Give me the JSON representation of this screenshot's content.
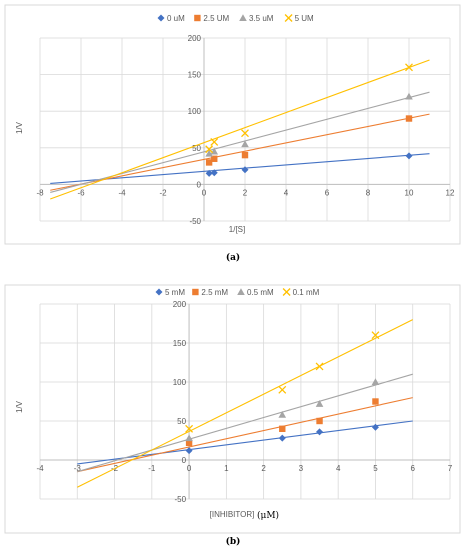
{
  "captions": [
    "(a)",
    "(b)"
  ],
  "chart_data": [
    {
      "type": "scatter",
      "title": "",
      "xlabel": "1/[S]",
      "ylabel": "1/V",
      "xlim": [
        -8,
        12
      ],
      "ylim": [
        -50,
        200
      ],
      "x_ticks": [
        -8,
        -6,
        -4,
        -2,
        0,
        2,
        4,
        6,
        8,
        10,
        12
      ],
      "x_tick_labels": [
        "-8",
        "-6",
        "-4",
        "-2",
        "0",
        "2",
        "4",
        "6",
        "8",
        "10",
        "12"
      ],
      "y_ticks": [
        -50,
        0,
        50,
        100,
        150,
        200
      ],
      "y_tick_labels": [
        "-50",
        "0",
        "50",
        "100",
        "150",
        "200"
      ],
      "grid": true,
      "legend": "top",
      "series": [
        {
          "name": "0 uM",
          "marker": "diamond",
          "color": "#4472c4",
          "points": [
            [
              0.25,
              15
            ],
            [
              0.5,
              16
            ],
            [
              2,
              20
            ],
            [
              10,
              39
            ]
          ],
          "trendline": {
            "x1": -7.5,
            "y1": 1.3,
            "x2": 11,
            "y2": 42
          }
        },
        {
          "name": "2.5 UM",
          "marker": "square",
          "color": "#ed7d31",
          "points": [
            [
              0.25,
              30
            ],
            [
              0.5,
              35
            ],
            [
              2,
              40
            ],
            [
              10,
              90
            ]
          ],
          "trendline": {
            "x1": -7.5,
            "y1": -8,
            "x2": 11,
            "y2": 96
          }
        },
        {
          "name": "3.5 uM",
          "marker": "triangle",
          "color": "#a5a5a5",
          "points": [
            [
              0.25,
              42
            ],
            [
              0.5,
              45
            ],
            [
              2,
              55
            ],
            [
              10,
              120
            ]
          ],
          "trendline": {
            "x1": -7.5,
            "y1": -11,
            "x2": 11,
            "y2": 126
          }
        },
        {
          "name": "5 UM",
          "marker": "x",
          "color": "#ffc000",
          "points": [
            [
              0.25,
              48
            ],
            [
              0.5,
              58
            ],
            [
              2,
              70
            ],
            [
              10,
              160
            ]
          ],
          "trendline": {
            "x1": -7.5,
            "y1": -20,
            "x2": 11,
            "y2": 170
          }
        }
      ]
    },
    {
      "type": "scatter",
      "title": "",
      "xlabel": "[INHIBITOR]",
      "xlabel_unit": "(μM)",
      "ylabel": "1/V",
      "xlim": [
        -4,
        7
      ],
      "ylim": [
        -50,
        200
      ],
      "x_ticks": [
        -4,
        -3,
        -2,
        -1,
        0,
        1,
        2,
        3,
        4,
        5,
        6,
        7
      ],
      "x_tick_labels": [
        "-4",
        "-3",
        "-2",
        "-1",
        "0",
        "1",
        "2",
        "3",
        "4",
        "5",
        "6",
        "7"
      ],
      "y_ticks": [
        -50,
        0,
        50,
        100,
        150,
        200
      ],
      "y_tick_labels": [
        "-50",
        "0",
        "50",
        "100",
        "150",
        "200"
      ],
      "grid": true,
      "legend": "top",
      "series": [
        {
          "name": "5 mM",
          "marker": "diamond",
          "color": "#4472c4",
          "points": [
            [
              0,
              12
            ],
            [
              2.5,
              28
            ],
            [
              3.5,
              36
            ],
            [
              5,
              42
            ]
          ],
          "trendline": {
            "x1": -3,
            "y1": -5,
            "x2": 6,
            "y2": 50
          }
        },
        {
          "name": "2.5 mM",
          "marker": "square",
          "color": "#ed7d31",
          "points": [
            [
              0,
              22
            ],
            [
              2.5,
              40
            ],
            [
              3.5,
              50
            ],
            [
              5,
              75
            ]
          ],
          "trendline": {
            "x1": -3,
            "y1": -15,
            "x2": 6,
            "y2": 80
          }
        },
        {
          "name": "0.5 mM",
          "marker": "triangle",
          "color": "#a5a5a5",
          "points": [
            [
              0,
              28
            ],
            [
              2.5,
              58
            ],
            [
              3.5,
              72
            ],
            [
              5,
              100
            ]
          ],
          "trendline": {
            "x1": -3,
            "y1": -15,
            "x2": 6,
            "y2": 110
          }
        },
        {
          "name": "0.1 mM",
          "marker": "x",
          "color": "#ffc000",
          "points": [
            [
              0,
              40
            ],
            [
              2.5,
              90
            ],
            [
              3.5,
              120
            ],
            [
              5,
              160
            ]
          ],
          "trendline": {
            "x1": -3,
            "y1": -35,
            "x2": 6,
            "y2": 180
          }
        }
      ]
    }
  ]
}
